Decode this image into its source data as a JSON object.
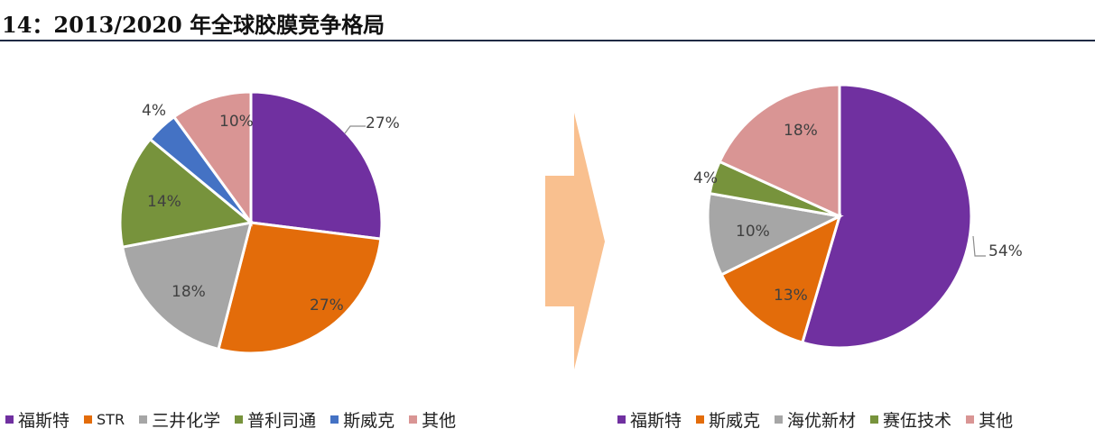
{
  "title": "14：2013/2020 年全球胶膜竞争格局",
  "chart_data": [
    {
      "type": "pie",
      "slices": [
        {
          "label": "福斯特",
          "value": 27,
          "color": "#7030a0",
          "text": "27%"
        },
        {
          "label": "STR",
          "value": 27,
          "color": "#e36c0a",
          "text": "27%"
        },
        {
          "label": "三井化学",
          "value": 18,
          "color": "#a6a6a6",
          "text": "18%"
        },
        {
          "label": "普利司通",
          "value": 14,
          "color": "#77933c",
          "text": "14%"
        },
        {
          "label": "斯威克",
          "value": 4,
          "color": "#4472c4",
          "text": "4%"
        },
        {
          "label": "其他",
          "value": 10,
          "color": "#d99594",
          "text": "10%"
        }
      ]
    },
    {
      "type": "pie",
      "slices": [
        {
          "label": "福斯特",
          "value": 54,
          "color": "#7030a0",
          "text": "54%"
        },
        {
          "label": "斯威克",
          "value": 13,
          "color": "#e36c0a",
          "text": "13%"
        },
        {
          "label": "海优新材",
          "value": 10,
          "color": "#a6a6a6",
          "text": "10%"
        },
        {
          "label": "赛伍技术",
          "value": 4,
          "color": "#77933c",
          "text": "4%"
        },
        {
          "label": "其他",
          "value": 18,
          "color": "#d99594",
          "text": "18%"
        }
      ]
    }
  ],
  "arrow_color": "#f9c08f"
}
